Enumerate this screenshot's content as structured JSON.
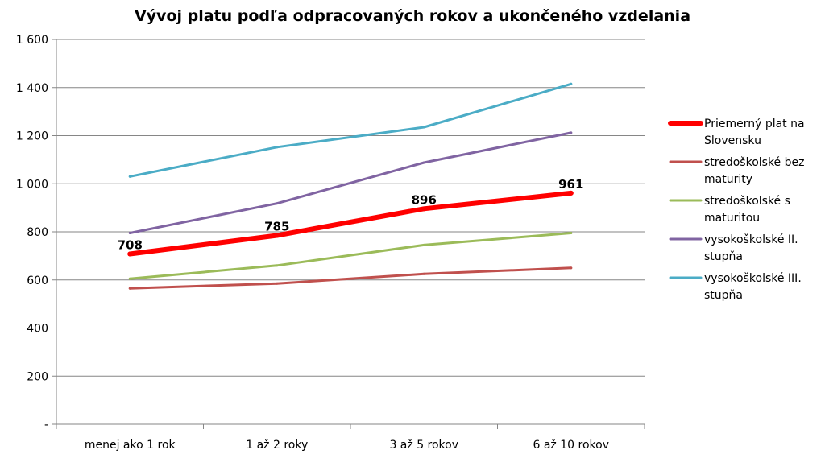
{
  "chart_data": {
    "type": "line",
    "title": "Vývoj platu podľa odpracovaných rokov a ukončeného vzdelania",
    "xlabel": "",
    "ylabel": "",
    "categories": [
      "menej ako 1 rok",
      "1 až 2 roky",
      "3 až 5 rokov",
      "6 až 10 rokov"
    ],
    "ylim": [
      0,
      1600
    ],
    "yticks": [
      {
        "value": 0,
        "label": "-"
      },
      {
        "value": 200,
        "label": "200"
      },
      {
        "value": 400,
        "label": "400"
      },
      {
        "value": 600,
        "label": "600"
      },
      {
        "value": 800,
        "label": "800"
      },
      {
        "value": 1000,
        "label": "1 000"
      },
      {
        "value": 1200,
        "label": "1 200"
      },
      {
        "value": 1400,
        "label": "1 400"
      },
      {
        "value": 1600,
        "label": "1 600"
      }
    ],
    "grid": true,
    "legend_position": "right",
    "series": [
      {
        "name": "Priemerný plat na Slovensku",
        "legend_lines": [
          "Priemerný plat na",
          "Slovensku"
        ],
        "color": "#ff0000",
        "bold": true,
        "values": [
          708,
          785,
          896,
          961
        ],
        "data_labels": [
          "708",
          "785",
          "896",
          "961"
        ]
      },
      {
        "name": "stredoškolské bez maturity",
        "legend_lines": [
          "stredoškolské bez",
          "maturity"
        ],
        "color": "#c0504d",
        "bold": false,
        "values": [
          565,
          585,
          625,
          650
        ]
      },
      {
        "name": "stredoškolské s maturitou",
        "legend_lines": [
          "stredoškolské s",
          "maturitou"
        ],
        "color": "#9bbb59",
        "bold": false,
        "values": [
          605,
          660,
          745,
          795
        ]
      },
      {
        "name": "vysokoškolské II. stupňa",
        "legend_lines": [
          "vysokoškolské II.",
          "stupňa"
        ],
        "color": "#8064a2",
        "bold": false,
        "values": [
          795,
          918,
          1088,
          1212
        ]
      },
      {
        "name": "vysokoškolské III. stupňa",
        "legend_lines": [
          "vysokoškolské III.",
          "stupňa"
        ],
        "color": "#4bacc6",
        "bold": false,
        "values": [
          1030,
          1152,
          1235,
          1415
        ]
      }
    ]
  }
}
